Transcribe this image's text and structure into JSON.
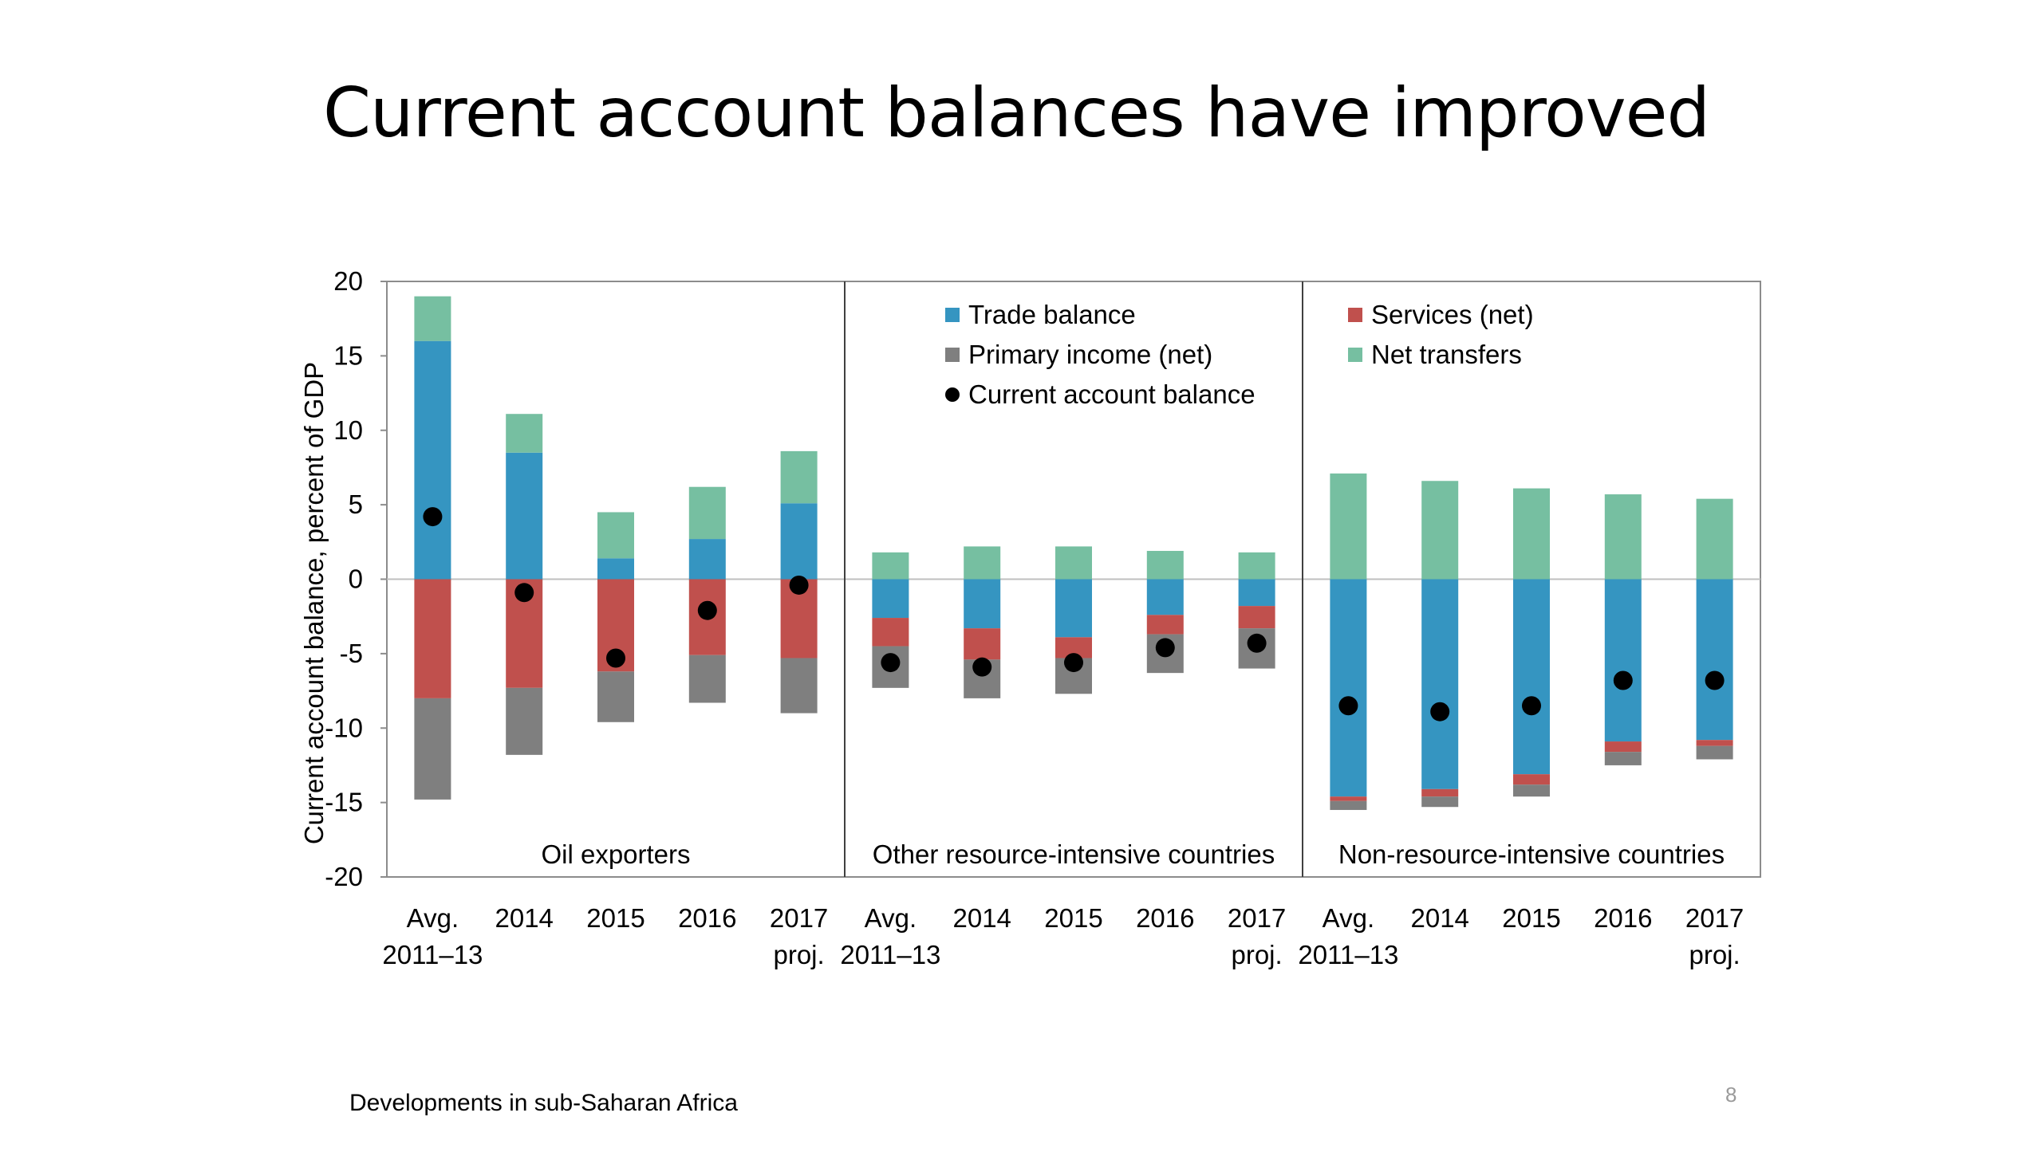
{
  "slide": {
    "title": "Current account balances have improved",
    "footer": "Developments in sub-Saharan Africa",
    "page_number": "8"
  },
  "chart_data": {
    "type": "bar",
    "stacked": true,
    "ylabel": "Current account balance, percent of GDP",
    "ylim": [
      -20,
      20
    ],
    "yticks": [
      20,
      15,
      10,
      5,
      0,
      -5,
      -10,
      -15,
      -20
    ],
    "legend": [
      {
        "key": "trade",
        "label": "Trade balance",
        "marker": "square",
        "color": "#3595c1"
      },
      {
        "key": "primary",
        "label": "Primary income (net)",
        "marker": "square",
        "color": "#7f7f7f"
      },
      {
        "key": "ca",
        "label": "Current account balance",
        "marker": "circle",
        "color": "#000000"
      },
      {
        "key": "services",
        "label": "Services (net)",
        "marker": "square",
        "color": "#c0504d"
      },
      {
        "key": "transfers",
        "label": "Net transfers",
        "marker": "square",
        "color": "#76bfa1"
      }
    ],
    "panels": [
      {
        "name": "Oil exporters",
        "categories": [
          [
            "Avg.",
            "2011–13"
          ],
          [
            "2014",
            ""
          ],
          [
            "2015",
            ""
          ],
          [
            "2016",
            ""
          ],
          [
            "2017",
            "proj."
          ]
        ],
        "trade": [
          16.0,
          8.5,
          1.4,
          2.7,
          5.1
        ],
        "transfers": [
          3.0,
          2.6,
          3.1,
          3.5,
          3.5
        ],
        "services": [
          -8.0,
          -7.3,
          -6.2,
          -5.1,
          -5.3
        ],
        "primary": [
          -6.8,
          -4.5,
          -3.4,
          -3.2,
          -3.7
        ],
        "ca": [
          4.2,
          -0.9,
          -5.3,
          -2.1,
          -0.4
        ]
      },
      {
        "name": "Other resource-intensive countries",
        "categories": [
          [
            "Avg.",
            "2011–13"
          ],
          [
            "2014",
            ""
          ],
          [
            "2015",
            ""
          ],
          [
            "2016",
            ""
          ],
          [
            "2017",
            "proj."
          ]
        ],
        "trade": [
          -2.6,
          -3.3,
          -3.9,
          -2.4,
          -1.8
        ],
        "transfers": [
          1.8,
          2.2,
          2.2,
          1.9,
          1.8
        ],
        "services": [
          -1.9,
          -2.1,
          -1.4,
          -1.3,
          -1.5
        ],
        "primary": [
          -2.8,
          -2.6,
          -2.4,
          -2.6,
          -2.7
        ],
        "ca": [
          -5.6,
          -5.9,
          -5.6,
          -4.6,
          -4.3
        ]
      },
      {
        "name": "Non-resource-intensive countries",
        "categories": [
          [
            "Avg.",
            "2011–13"
          ],
          [
            "2014",
            ""
          ],
          [
            "2015",
            ""
          ],
          [
            "2016",
            ""
          ],
          [
            "2017",
            "proj."
          ]
        ],
        "trade": [
          -14.6,
          -14.1,
          -13.1,
          -10.9,
          -10.8
        ],
        "transfers": [
          7.1,
          6.6,
          6.1,
          5.7,
          5.4
        ],
        "services": [
          -0.3,
          -0.5,
          -0.7,
          -0.7,
          -0.4
        ],
        "primary": [
          -0.6,
          -0.7,
          -0.8,
          -0.9,
          -0.9
        ],
        "ca": [
          -8.5,
          -8.9,
          -8.5,
          -6.8,
          -6.8
        ]
      }
    ]
  }
}
